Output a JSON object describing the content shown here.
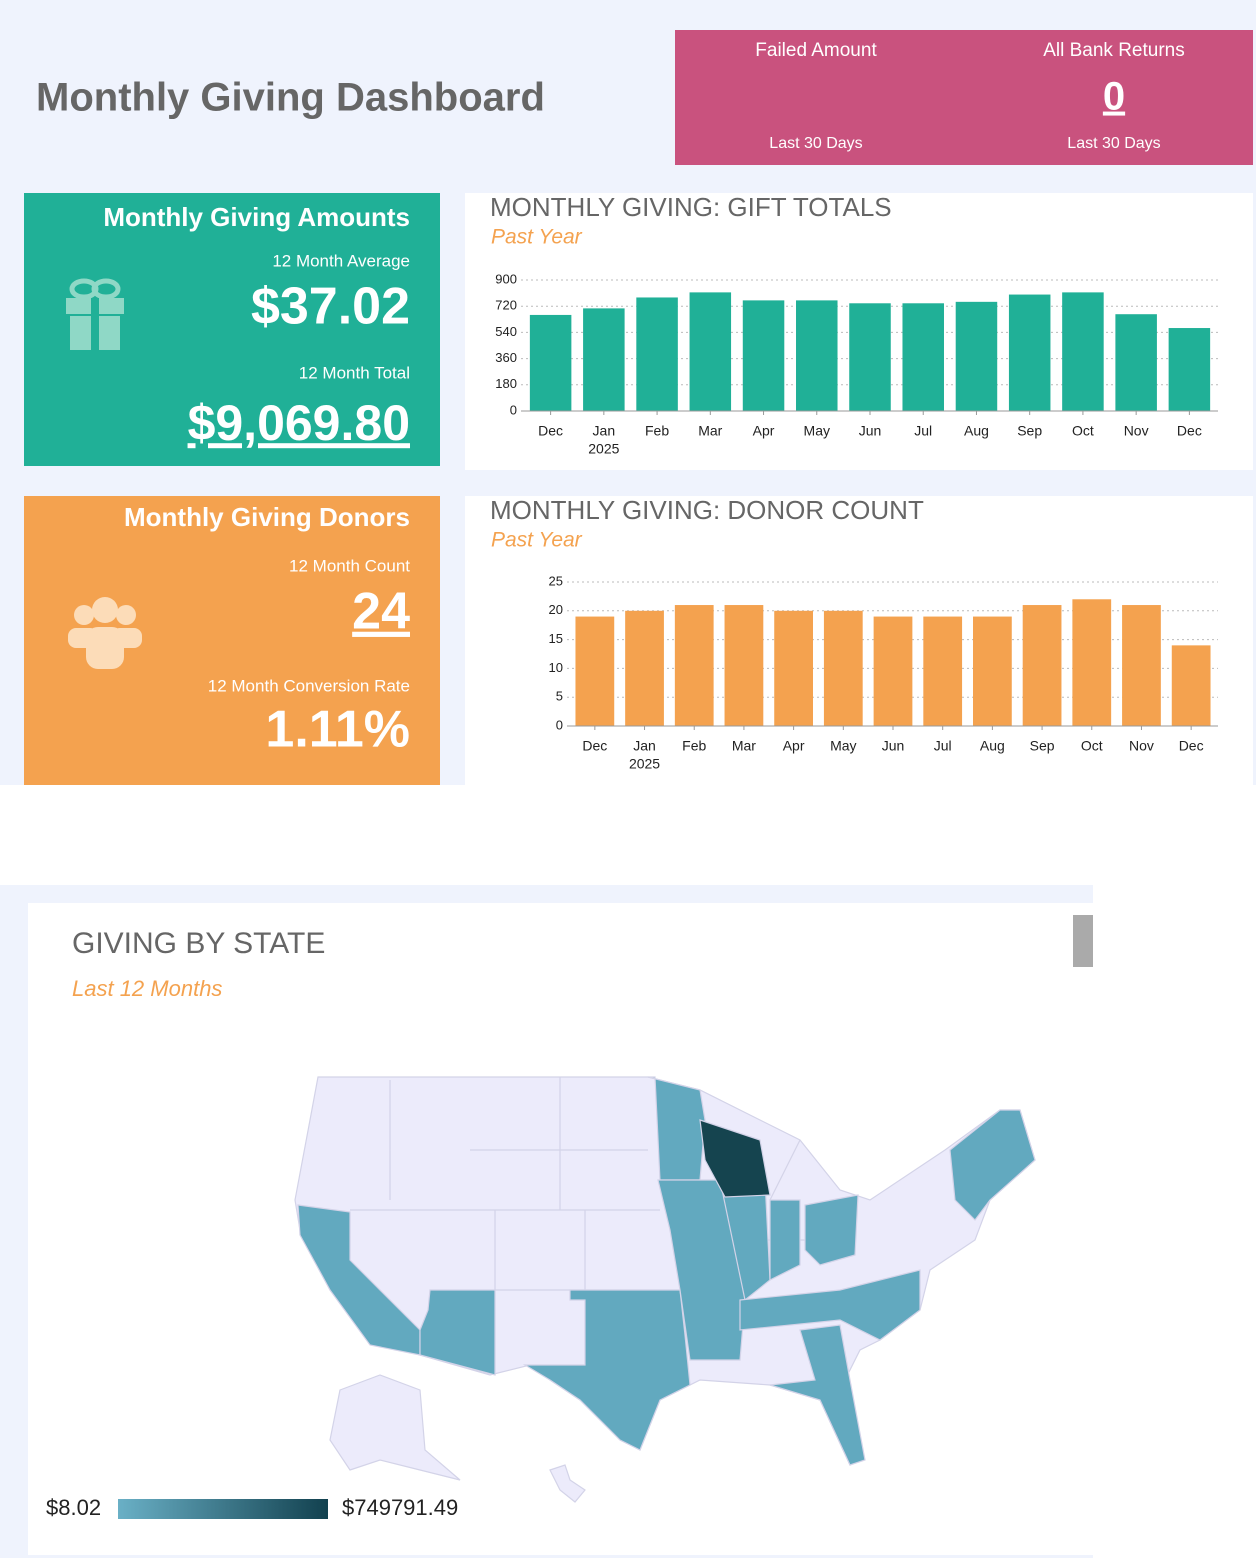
{
  "header": {
    "title": "Monthly Giving Dashboard"
  },
  "alerts": [
    {
      "label": "Failed Amount",
      "period": "Last 30 Days"
    },
    {
      "label": "All Bank Returns",
      "value": 0,
      "period": "Last 30 Days"
    }
  ],
  "tiles": [
    {
      "title": "Monthly Giving Amounts",
      "metrics": [
        {
          "label": "12 Month Average",
          "value": "$37.02"
        },
        {
          "label": "12 Month Total",
          "value": "$9,069.80"
        }
      ]
    },
    {
      "title": "Monthly Giving Donors",
      "metrics": [
        {
          "label": "12 Month Count",
          "value": "24"
        },
        {
          "label": "12 Month Conversion Rate",
          "value": "1.11%"
        }
      ]
    }
  ],
  "chart_data": [
    {
      "type": "bar",
      "title": "MONTHLY GIVING: GIFT TOTALS",
      "subtitle": "Past Year",
      "categories": [
        "Dec",
        "Jan",
        "Feb",
        "Mar",
        "Apr",
        "May",
        "Jun",
        "Jul",
        "Aug",
        "Sep",
        "Oct",
        "Nov",
        "Dec"
      ],
      "year_label": "2025",
      "values": [
        660,
        705,
        780,
        815,
        760,
        760,
        740,
        740,
        750,
        800,
        815,
        665,
        570
      ],
      "color": "#20b097",
      "ylim": [
        0,
        900
      ],
      "yticks": [
        0,
        180,
        360,
        540,
        720,
        900
      ],
      "grid": true
    },
    {
      "type": "bar",
      "title": "MONTHLY GIVING: DONOR COUNT",
      "subtitle": "Past Year",
      "categories": [
        "Dec",
        "Jan",
        "Feb",
        "Mar",
        "Apr",
        "May",
        "Jun",
        "Jul",
        "Aug",
        "Sep",
        "Oct",
        "Nov",
        "Dec"
      ],
      "year_label": "2025",
      "values": [
        19,
        20,
        21,
        21,
        20,
        20,
        19,
        19,
        19,
        21,
        22,
        21,
        14
      ],
      "color": "#f4a24f",
      "ylim": [
        0,
        25
      ],
      "yticks": [
        0,
        5,
        10,
        15,
        20,
        25
      ],
      "grid": true
    }
  ],
  "map": {
    "title": "GIVING BY STATE",
    "subtitle": "Last 12 Months",
    "legend": {
      "min": "$8.02",
      "max": "$749791.49"
    }
  }
}
